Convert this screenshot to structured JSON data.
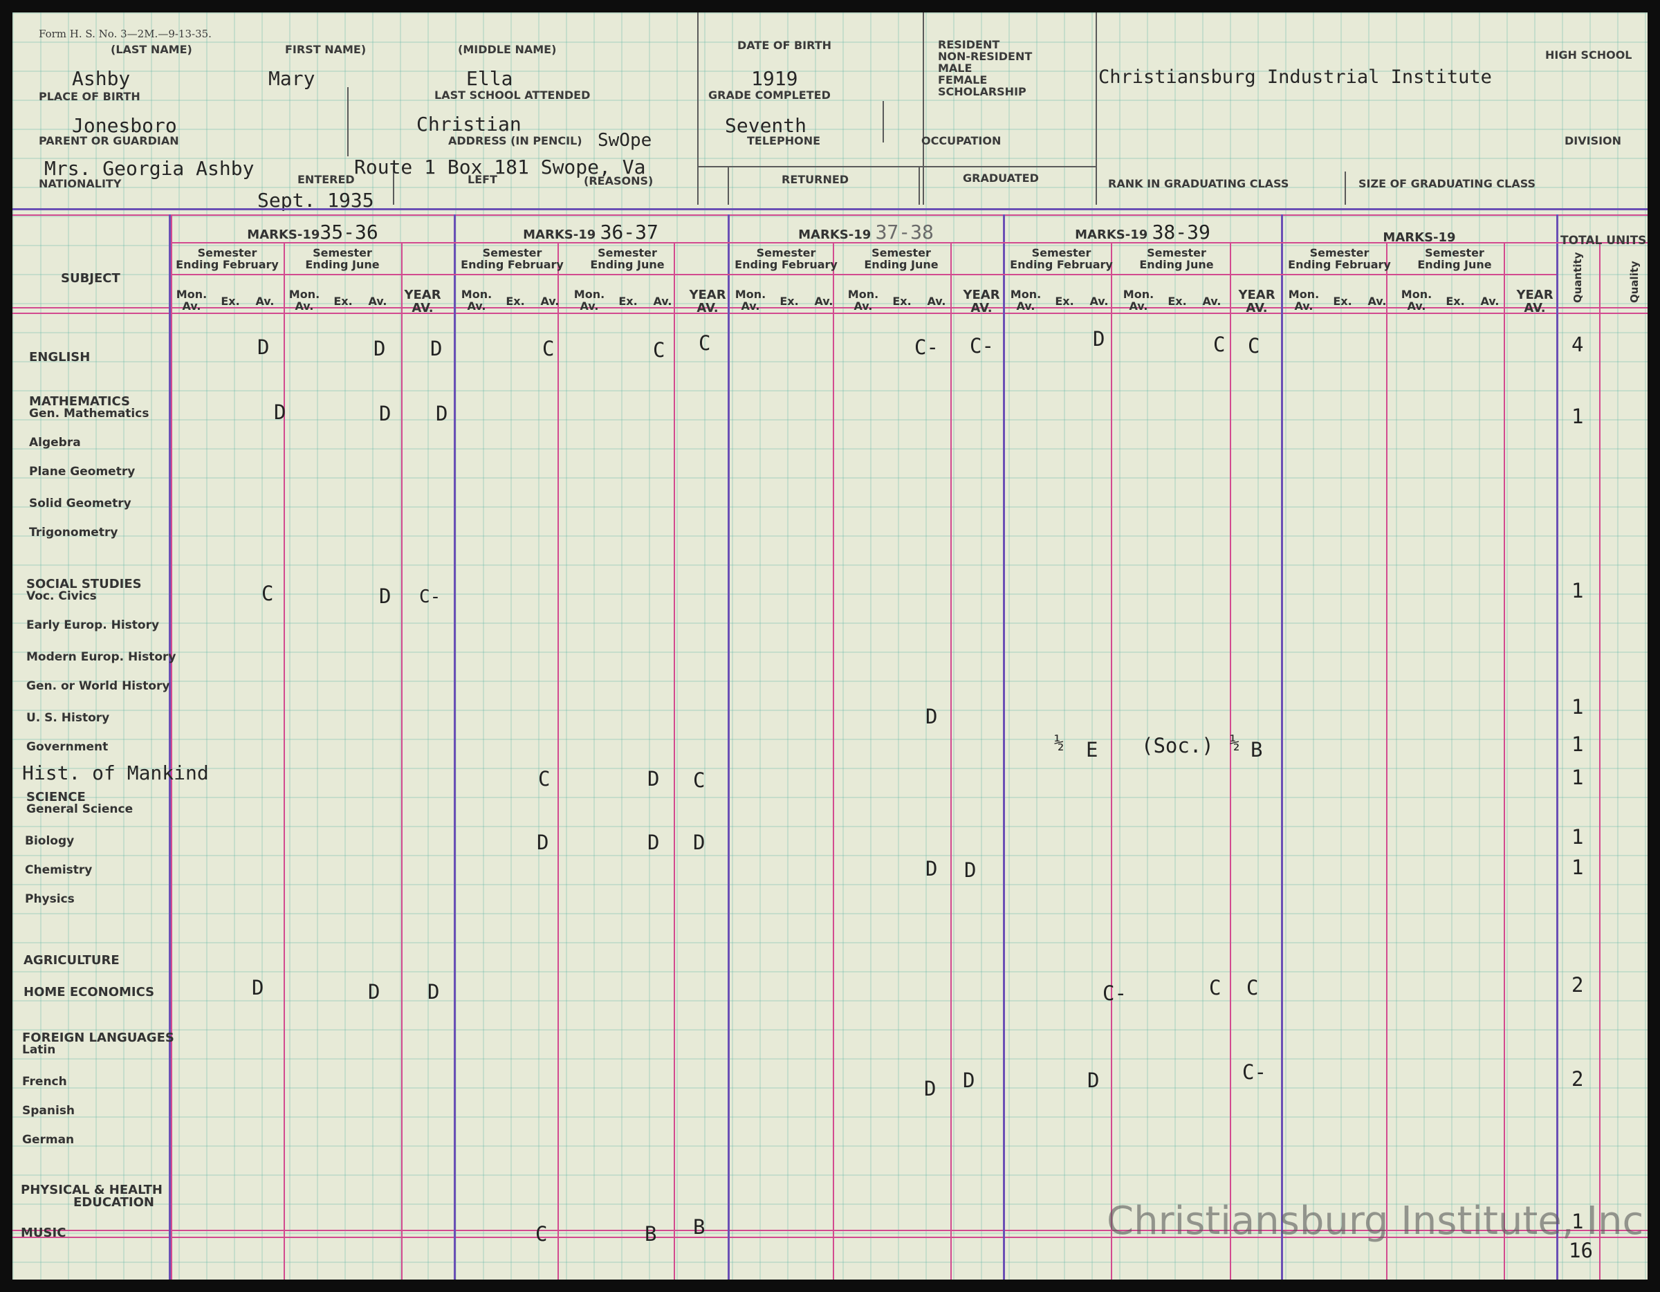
{
  "form_number": "Form H. S. No. 3—2M.—9-13-35.",
  "header_labels": {
    "last_name": "(LAST NAME)",
    "first_name": "FIRST NAME)",
    "middle_name": "(MIDDLE NAME)",
    "date_of_birth": "DATE OF BIRTH",
    "status_options": [
      "RESIDENT",
      "NON-RESIDENT",
      "MALE",
      "FEMALE",
      "SCHOLARSHIP"
    ],
    "high_school": "HIGH SCHOOL",
    "place_of_birth": "PLACE OF BIRTH",
    "last_school": "LAST SCHOOL ATTENDED",
    "grade_completed": "GRADE COMPLETED",
    "parent": "PARENT OR GUARDIAN",
    "address": "ADDRESS (IN PENCIL)",
    "telephone": "TELEPHONE",
    "occupation": "OCCUPATION",
    "division": "DIVISION",
    "nationality": "NATIONALITY",
    "entered": "ENTERED",
    "left": "LEFT",
    "reasons": "(REASONS)",
    "returned": "RETURNED",
    "graduated": "GRADUATED",
    "rank": "RANK IN GRADUATING CLASS",
    "size": "SIZE OF GRADUATING CLASS"
  },
  "student": {
    "last_name": "Ashby",
    "first_name": "Mary",
    "middle_name": "Ella",
    "date_of_birth": "1919",
    "school": "Christiansburg Industrial Institute",
    "place_of_birth": "Jonesboro",
    "last_school": "Christian",
    "grade_completed": "Seventh",
    "pencil_note": "SwOpe",
    "parent": "Mrs. Georgia Ashby",
    "address": "Route 1 Box 181 Swope, Va",
    "entered": "Sept. 1935"
  },
  "grid_labels": {
    "subject": "SUBJECT",
    "marks_prefix": "MARKS-19",
    "sem_feb": "Semester\nEnding February",
    "sem_june": "Semester\nEnding June",
    "mon_av": "Mon.\nAv.",
    "ex": "Ex.",
    "av": "Av.",
    "year_av": "YEAR\nAV.",
    "total_units": "TOTAL UNITS",
    "quantity": "Quantity",
    "quality": "Quality"
  },
  "years": [
    "35-36",
    "36-37",
    "37-38",
    "38-39",
    ""
  ],
  "subjects": [
    {
      "label": "ENGLISH",
      "y": 0
    },
    {
      "label": "MATHEMATICS"
    },
    {
      "label": "Gen. Mathematics"
    },
    {
      "label": "Algebra"
    },
    {
      "label": "Plane Geometry"
    },
    {
      "label": "Solid Geometry"
    },
    {
      "label": "Trigonometry"
    },
    {
      "label": "SOCIAL STUDIES"
    },
    {
      "label": "Voc. Civics"
    },
    {
      "label": "Early Europ. History"
    },
    {
      "label": "Modern Europ. History"
    },
    {
      "label": "Gen. or World History"
    },
    {
      "label": "U. S. History"
    },
    {
      "label": "Government"
    },
    {
      "label": "Hist. of Mankind"
    },
    {
      "label": "SCIENCE"
    },
    {
      "label": "General Science"
    },
    {
      "label": "Biology"
    },
    {
      "label": "Chemistry"
    },
    {
      "label": "Physics"
    },
    {
      "label": "AGRICULTURE"
    },
    {
      "label": "HOME ECONOMICS"
    },
    {
      "label": "FOREIGN LANGUAGES"
    },
    {
      "label": "Latin"
    },
    {
      "label": "French"
    },
    {
      "label": "Spanish"
    },
    {
      "label": "German"
    },
    {
      "label": "PHYSICAL & HEALTH"
    },
    {
      "label": "EDUCATION"
    },
    {
      "label": "MUSIC"
    }
  ],
  "marks": {
    "english": [
      "D",
      "D",
      "D",
      "C",
      "C",
      "C",
      "C-",
      "C-",
      "D",
      "C",
      "C"
    ],
    "gen_math": [
      "D",
      "D",
      "D"
    ],
    "voc_civics": [
      "C",
      "D",
      "C-"
    ],
    "us_history": [
      "D"
    ],
    "government": [
      "½",
      "E",
      "(Soc.)",
      "½",
      "B"
    ],
    "hist_mankind": [
      "C",
      "D",
      "C"
    ],
    "biology": [
      "D",
      "D",
      "D"
    ],
    "chemistry": [
      "D",
      "D"
    ],
    "home_ec": [
      "D",
      "D",
      "D",
      "C-",
      "C",
      "C"
    ],
    "french": [
      "D",
      "D",
      "D",
      "C-"
    ],
    "music": [
      "C",
      "B",
      "B"
    ]
  },
  "units": {
    "english": "4",
    "gen_math": "1",
    "voc_civics": "1",
    "us_history": "1",
    "government": "1",
    "hist_mankind": "1",
    "biology": "1",
    "chemistry": "1",
    "home_ec": "2",
    "french": "2",
    "music": "1",
    "total": "16"
  },
  "watermark": "Christiansburg Institute, Inc"
}
